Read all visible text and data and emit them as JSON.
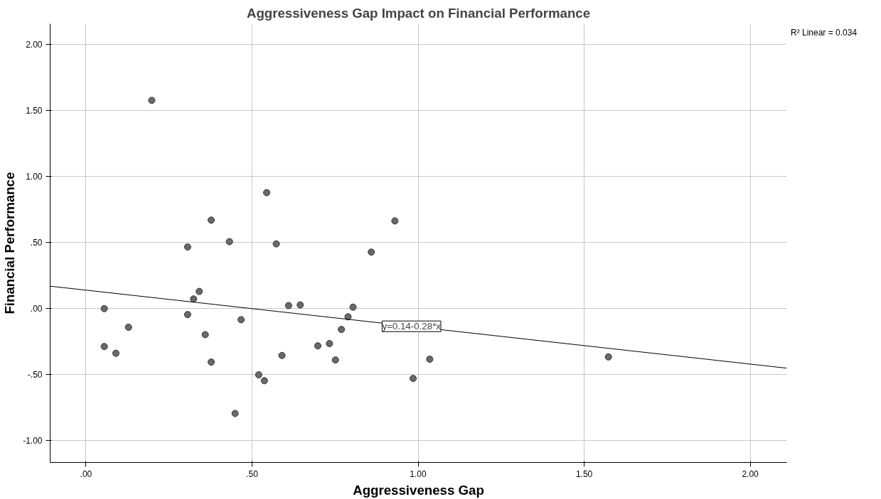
{
  "chart_data": {
    "type": "scatter",
    "title": "Aggressiveness Gap Impact on Financial Performance",
    "xlabel": "Aggressiveness Gap",
    "ylabel": "Financial Performance",
    "xlim": [
      -0.108,
      2.11
    ],
    "ylim": [
      -1.165,
      2.157
    ],
    "xticks": [
      {
        "value": 0,
        "label": ".00"
      },
      {
        "value": 0.5,
        "label": ".50"
      },
      {
        "value": 1,
        "label": "1.00"
      },
      {
        "value": 1.5,
        "label": "1.50"
      },
      {
        "value": 2,
        "label": "2.00"
      }
    ],
    "yticks": [
      {
        "value": -1,
        "label": "-1.00"
      },
      {
        "value": -0.5,
        "label": "-.50"
      },
      {
        "value": 0,
        "label": ".00"
      },
      {
        "value": 0.5,
        "label": ".50"
      },
      {
        "value": 1,
        "label": "1.00"
      },
      {
        "value": 1.5,
        "label": "1.50"
      },
      {
        "value": 2,
        "label": "2.00"
      }
    ],
    "grid": true,
    "marker": "circle",
    "legend": false,
    "series": [
      {
        "type": "scatter",
        "color": "#696969",
        "x": [
          0.198,
          0.544,
          0.93,
          0.377,
          0.432,
          0.306,
          0.573,
          0.859,
          0.341,
          0.324,
          0.055,
          0.61,
          0.645,
          0.804,
          0.789,
          0.306,
          0.467,
          0.128,
          0.769,
          0.359,
          0.055,
          0.698,
          0.733,
          0.09,
          0.59,
          0.377,
          0.751,
          1.035,
          1.573,
          0.52,
          0.537,
          0.985,
          0.449
        ],
        "values": [
          1.577,
          0.878,
          0.664,
          0.67,
          0.507,
          0.467,
          0.49,
          0.428,
          0.13,
          0.073,
          0.0,
          0.023,
          0.028,
          0.011,
          -0.062,
          -0.045,
          -0.084,
          -0.141,
          -0.158,
          -0.197,
          -0.287,
          -0.282,
          -0.265,
          -0.338,
          -0.355,
          -0.405,
          -0.389,
          -0.383,
          -0.366,
          -0.501,
          -0.546,
          -0.529,
          -0.794
        ]
      },
      {
        "type": "line",
        "color": "#000000",
        "marker": "none",
        "x": [
          -0.108,
          2.11
        ],
        "values": [
          0.17,
          -0.451
        ]
      }
    ],
    "annotations": [
      {
        "text": "y=0.14-0.28*x",
        "x": 0.98,
        "y": -0.134
      },
      "R² Linear = 0.034"
    ]
  }
}
